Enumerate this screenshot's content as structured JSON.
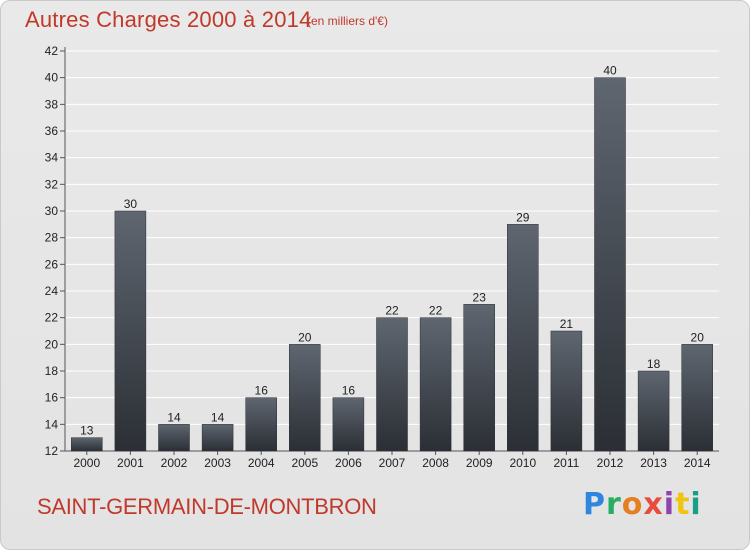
{
  "title": "Autres Charges 2000 à 2014",
  "subtitle": "(en milliers d'€)",
  "commune": "SAINT-GERMAIN-DE-MONTBRON",
  "logo": "Proxiti",
  "colors": {
    "title": "#c0392b",
    "bar_top": "#5f6670",
    "bar_bottom": "#2b2f35",
    "grid": "#ffffff"
  },
  "chart_data": {
    "type": "bar",
    "title": "Autres Charges 2000 à 2014",
    "subtitle": "(en milliers d'€)",
    "xlabel": "",
    "ylabel": "",
    "categories": [
      "2000",
      "2001",
      "2002",
      "2003",
      "2004",
      "2005",
      "2006",
      "2007",
      "2008",
      "2009",
      "2010",
      "2011",
      "2012",
      "2013",
      "2014"
    ],
    "values": [
      13,
      30,
      14,
      14,
      16,
      20,
      16,
      22,
      22,
      23,
      29,
      21,
      40,
      18,
      20
    ],
    "ylim": [
      12,
      42
    ],
    "yticks": [
      12,
      14,
      16,
      18,
      20,
      22,
      24,
      26,
      28,
      30,
      32,
      34,
      36,
      38,
      40,
      42
    ],
    "grid": true,
    "data_labels": true
  }
}
